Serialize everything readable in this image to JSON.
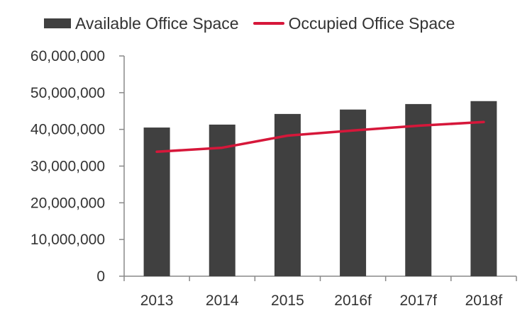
{
  "chart_data": {
    "type": "bar",
    "categories": [
      "2013",
      "2014",
      "2015",
      "2016f",
      "2017f",
      "2018f"
    ],
    "series": [
      {
        "name": "Available Office Space",
        "type": "bar",
        "color": "#404040",
        "values": [
          40500000,
          41300000,
          44200000,
          45400000,
          46900000,
          47700000
        ]
      },
      {
        "name": "Occupied Office Space",
        "type": "line",
        "color": "#d6173a",
        "values": [
          33900000,
          35000000,
          38300000,
          39700000,
          41000000,
          42000000
        ]
      }
    ],
    "ylim": [
      0,
      60000000
    ],
    "yticks": [
      0,
      10000000,
      20000000,
      30000000,
      40000000,
      50000000,
      60000000
    ],
    "ytick_labels": [
      "0",
      "10,000,000",
      "20,000,000",
      "30,000,000",
      "40,000,000",
      "50,000,000",
      "60,000,000"
    ],
    "title": "",
    "xlabel": "",
    "ylabel": "",
    "grid": false,
    "legend_position": "top"
  }
}
